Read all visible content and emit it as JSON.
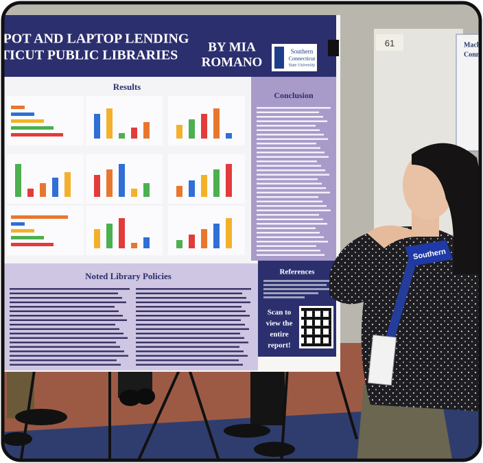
{
  "poster": {
    "title_lines": [
      "POT AND LAPTOP LENDING",
      "TICUT PUBLIC LIBRARIES"
    ],
    "author_lines": [
      "BY MIA",
      "ROMANO"
    ],
    "logo_lines": [
      "Southern",
      "Connecticut",
      "State University"
    ],
    "sections": {
      "results": "Results",
      "conclusion": "Conclusion",
      "policies": "Noted Library Policies",
      "references": "References"
    },
    "scan_lines": [
      "Scan to",
      "view the",
      "entire",
      "report!"
    ]
  },
  "background": {
    "board_number": "61",
    "next_poster_lines": [
      "Machi",
      "Conne"
    ]
  },
  "lanyard": "Southern"
}
